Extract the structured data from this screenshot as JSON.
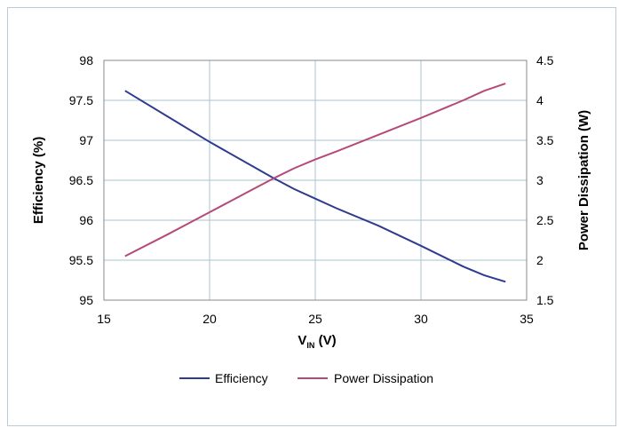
{
  "chart_data": {
    "type": "line",
    "x": [
      16,
      18,
      20,
      22,
      23,
      24,
      25,
      26,
      28,
      30,
      32,
      33,
      34
    ],
    "series": [
      {
        "name": "Efficiency",
        "axis": "left",
        "color": "#2e3b8f",
        "values": [
          97.62,
          97.3,
          96.98,
          96.68,
          96.53,
          96.39,
          96.27,
          96.15,
          95.93,
          95.68,
          95.42,
          95.31,
          95.23
        ]
      },
      {
        "name": "Power Dissipation",
        "axis": "right",
        "color": "#b54a7a",
        "values": [
          2.05,
          2.32,
          2.6,
          2.88,
          3.02,
          3.15,
          3.26,
          3.36,
          3.57,
          3.78,
          4.0,
          4.12,
          4.21
        ]
      }
    ],
    "xlim": [
      15,
      35
    ],
    "xticks": [
      "15",
      "20",
      "25",
      "30",
      "35"
    ],
    "ylim_left": [
      95,
      98
    ],
    "yticks_left": [
      "95",
      "95.5",
      "96",
      "96.5",
      "97",
      "97.5",
      "98"
    ],
    "ylim_right": [
      1.5,
      4.5
    ],
    "yticks_right": [
      "1.5",
      "2",
      "2.5",
      "3",
      "3.5",
      "4",
      "4.5"
    ],
    "xlabel_main": "V",
    "xlabel_sub": "IN",
    "xlabel_unit": " (V)",
    "ylabel_left": "Efficiency (%)",
    "ylabel_right": "Power Dissipation (W)",
    "grid": true,
    "legend_position": "bottom-center"
  }
}
